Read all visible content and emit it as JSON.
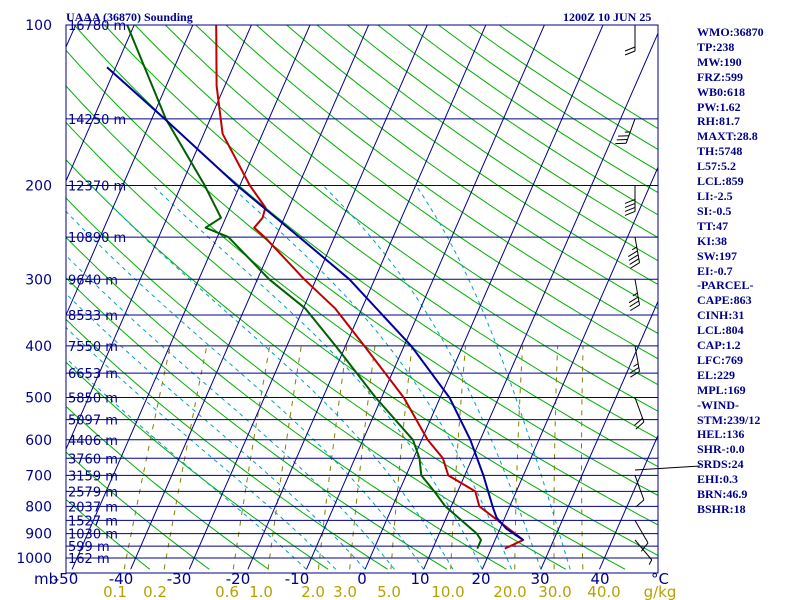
{
  "title": "UAAA (36870) Sounding",
  "datestamp": "1200Z 10 JUN 25",
  "indices": [
    "WMO:36870",
    "TP:238",
    "MW:190",
    "FRZ:599",
    "WB0:618",
    "PW:1.62",
    "RH:81.7",
    "MAXT:28.8",
    "TH:5748",
    "L57:5.2",
    "LCL:859",
    "LI:-2.5",
    "SI:-0.5",
    "TT:47",
    "KI:38",
    "SW:197",
    "EI:-0.7",
    "-PARCEL-",
    "CAPE:863",
    "CINH:31",
    "LCL:804",
    "CAP:1.2",
    "LFC:769",
    "EL:229",
    "MPL:169",
    "-WIND-",
    "STM:239/12",
    "HEL:136",
    "SHR-:0.0",
    "SRDS:24",
    "EHI:0.3",
    "BRN:46.9",
    "BSHR:18"
  ],
  "colors": {
    "isobar": "#00008b",
    "isotherm": "#00008b",
    "dry_adiabat": "#00b000",
    "moist_adiabat": "#00a0c0",
    "mixing_ratio": "#808000",
    "temperature": "#c00000",
    "dewpoint": "#006000",
    "parcel": "#0000a0",
    "wind": "#000000",
    "mixing_ratio_label": "#b8a000"
  },
  "chart_data": {
    "type": "line",
    "title": "UAAA (36870) Sounding",
    "subtitle": "1200Z 10 JUN 25",
    "pressure_unit": "mb",
    "temperature_unit": "C",
    "mixing_ratio_unit": "g/kg",
    "y_scale": "log",
    "ylim": [
      1000,
      100
    ],
    "xlim": [
      -50,
      50
    ],
    "pressure_ticks": [
      {
        "p": 100,
        "label": "100"
      },
      {
        "p": 200,
        "label": "200"
      },
      {
        "p": 300,
        "label": "300"
      },
      {
        "p": 400,
        "label": "400"
      },
      {
        "p": 500,
        "label": "500"
      },
      {
        "p": 600,
        "label": "600"
      },
      {
        "p": 700,
        "label": "700"
      },
      {
        "p": 800,
        "label": "800"
      },
      {
        "p": 900,
        "label": "900"
      },
      {
        "p": 1000,
        "label": "1000"
      }
    ],
    "temperature_ticks": [
      "-50",
      "-40",
      "-30",
      "-20",
      "-10",
      "0",
      "10",
      "20",
      "30",
      "40",
      "°C"
    ],
    "mixing_ratio_ticks": [
      "0.1",
      "0.2",
      "0.6",
      "1.0",
      "2.0",
      "3.0",
      "5.0",
      "10.0",
      "20.0",
      "30.0",
      "40.0",
      "g/kg"
    ],
    "height_labels": [
      {
        "p": 100,
        "label": "16780 m"
      },
      {
        "p": 150,
        "label": "14250 m"
      },
      {
        "p": 200,
        "label": "12370 m"
      },
      {
        "p": 250,
        "label": "10890 m"
      },
      {
        "p": 300,
        "label": "9640 m"
      },
      {
        "p": 350,
        "label": "8533 m"
      },
      {
        "p": 400,
        "label": "7550 m"
      },
      {
        "p": 450,
        "label": "6653 m"
      },
      {
        "p": 500,
        "label": "5850 m"
      },
      {
        "p": 550,
        "label": "5097 m"
      },
      {
        "p": 600,
        "label": "4406 m"
      },
      {
        "p": 650,
        "label": "3760 m"
      },
      {
        "p": 700,
        "label": "3159 m"
      },
      {
        "p": 750,
        "label": "2579 m"
      },
      {
        "p": 800,
        "label": "2037 m"
      },
      {
        "p": 850,
        "label": "1527 m"
      },
      {
        "p": 900,
        "label": "1030 m"
      },
      {
        "p": 950,
        "label": "599 m"
      },
      {
        "p": 1000,
        "label": "162 m"
      }
    ],
    "series": [
      {
        "name": "",
        "values": [
          {
            "p": 960,
            "t": 22.3
          },
          {
            "p": 925,
            "t": 24.8
          },
          {
            "p": 900,
            "t": 22.9
          },
          {
            "p": 850,
            "t": 19.0
          },
          {
            "p": 800,
            "t": 14.8
          },
          {
            "p": 750,
            "t": 13.0
          },
          {
            "p": 700,
            "t": 7.2
          },
          {
            "p": 650,
            "t": 5.0
          },
          {
            "p": 600,
            "t": 1.0
          },
          {
            "p": 500,
            "t": -6.2
          },
          {
            "p": 400,
            "t": -16.8
          },
          {
            "p": 340,
            "t": -24.6
          },
          {
            "p": 300,
            "t": -32.0
          },
          {
            "p": 250,
            "t": -41.9
          },
          {
            "p": 240,
            "t": -44.4
          },
          {
            "p": 230,
            "t": -43.7
          },
          {
            "p": 220,
            "t": -44.0
          },
          {
            "p": 200,
            "t": -48.3
          },
          {
            "p": 160,
            "t": -56.8
          },
          {
            "p": 130,
            "t": -61.4
          },
          {
            "p": 100,
            "t": -66.0
          }
        ]
      },
      {
        "name": "",
        "values": [
          {
            "p": 960,
            "t": 17.6
          },
          {
            "p": 925,
            "t": 17.6
          },
          {
            "p": 900,
            "t": 16.4
          },
          {
            "p": 850,
            "t": 12.8
          },
          {
            "p": 800,
            "t": 9.0
          },
          {
            "p": 750,
            "t": 6.0
          },
          {
            "p": 700,
            "t": 2.6
          },
          {
            "p": 650,
            "t": 1.0
          },
          {
            "p": 600,
            "t": -1.5
          },
          {
            "p": 500,
            "t": -11.0
          },
          {
            "p": 400,
            "t": -21.7
          },
          {
            "p": 340,
            "t": -29.7
          },
          {
            "p": 300,
            "t": -38.0
          },
          {
            "p": 250,
            "t": -48.1
          },
          {
            "p": 240,
            "t": -52.7
          },
          {
            "p": 230,
            "t": -50.8
          },
          {
            "p": 200,
            "t": -56.0
          },
          {
            "p": 150,
            "t": -67.6
          },
          {
            "p": 100,
            "t": -81.2
          }
        ]
      },
      {
        "name": "",
        "values": [
          {
            "p": 925,
            "t": 24.8
          },
          {
            "p": 880,
            "t": 21.0
          },
          {
            "p": 840,
            "t": 18.6
          },
          {
            "p": 804,
            "t": 17.2
          },
          {
            "p": 700,
            "t": 13.2
          },
          {
            "p": 600,
            "t": 8.3
          },
          {
            "p": 500,
            "t": 1.6
          },
          {
            "p": 400,
            "t": -8.8
          },
          {
            "p": 300,
            "t": -24.3
          },
          {
            "p": 250,
            "t": -36.0
          },
          {
            "p": 200,
            "t": -50.5
          },
          {
            "p": 150,
            "t": -67.8
          },
          {
            "p": 120,
            "t": -81.5
          }
        ]
      }
    ],
    "wind_barbs": [
      {
        "p": 925,
        "dir": 230,
        "kt": 5
      },
      {
        "p": 850,
        "dir": 240,
        "kt": 10
      },
      {
        "p": 700,
        "dir": 250,
        "kt": 10
      },
      {
        "p": 500,
        "dir": 250,
        "kt": 20
      },
      {
        "p": 400,
        "dir": 260,
        "kt": 25
      },
      {
        "p": 300,
        "dir": 260,
        "kt": 35
      },
      {
        "p": 250,
        "dir": 260,
        "kt": 45
      },
      {
        "p": 200,
        "dir": 270,
        "kt": 40
      },
      {
        "p": 150,
        "dir": 290,
        "kt": 35
      },
      {
        "p": 100,
        "dir": 270,
        "kt": 20
      }
    ]
  }
}
